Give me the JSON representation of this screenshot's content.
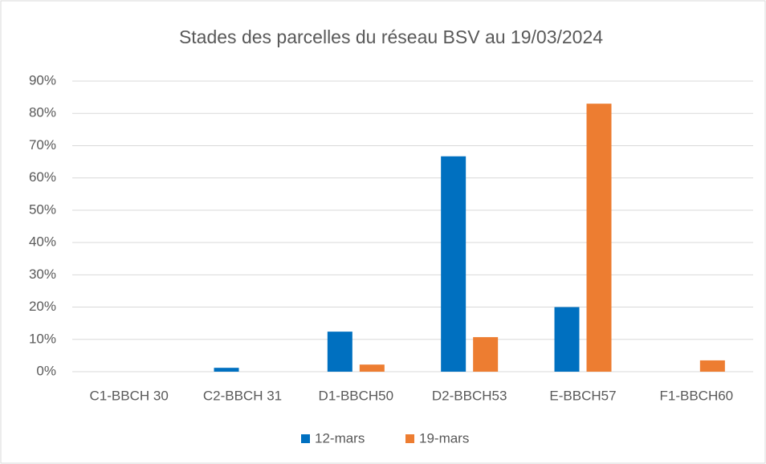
{
  "chart_data": {
    "type": "bar",
    "title": "Stades des parcelles du réseau BSV au 19/03/2024",
    "categories": [
      "C1-BBCH 30",
      "C2-BBCH 31",
      "D1-BBCH50",
      "D2-BBCH53",
      "E-BBCH57",
      "F1-BBCH60"
    ],
    "series": [
      {
        "name": "12-mars",
        "color": "#0070c0",
        "values": [
          0,
          1.2,
          12.4,
          66.7,
          20,
          0
        ]
      },
      {
        "name": "19-mars",
        "color": "#ed7d31",
        "values": [
          0,
          0,
          2.2,
          10.7,
          83,
          3.5
        ]
      }
    ],
    "ylim": [
      0,
      90
    ],
    "yticks": [
      {
        "value": 0,
        "label": "0%"
      },
      {
        "value": 10,
        "label": "10%"
      },
      {
        "value": 20,
        "label": "20%"
      },
      {
        "value": 30,
        "label": "30%"
      },
      {
        "value": 40,
        "label": "40%"
      },
      {
        "value": 50,
        "label": "50%"
      },
      {
        "value": 60,
        "label": "60%"
      },
      {
        "value": 70,
        "label": "70%"
      },
      {
        "value": 80,
        "label": "80%"
      },
      {
        "value": 90,
        "label": "90%"
      }
    ],
    "grid": true,
    "legend": "bottom"
  }
}
